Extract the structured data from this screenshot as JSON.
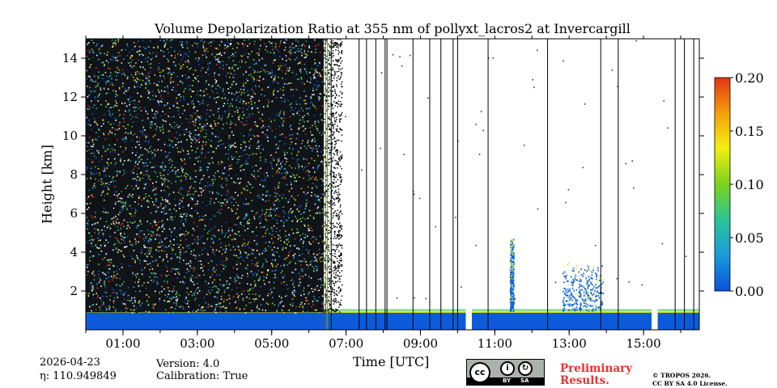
{
  "chart_data": {
    "type": "heatmap",
    "title": "Volume Depolarization Ratio at 355 nm of pollyxt_lacros2 at Invercargill",
    "xlabel": "Time [UTC]",
    "ylabel": "Height [km]",
    "x_range_hours": [
      0.0,
      16.5
    ],
    "y_range_km": [
      0.0,
      15.0
    ],
    "x_ticks": [
      {
        "value": 1,
        "label": "01:00"
      },
      {
        "value": 3,
        "label": "03:00"
      },
      {
        "value": 5,
        "label": "05:00"
      },
      {
        "value": 7,
        "label": "07:00"
      },
      {
        "value": 9,
        "label": "09:00"
      },
      {
        "value": 11,
        "label": "11:00"
      },
      {
        "value": 13,
        "label": "13:00"
      },
      {
        "value": 15,
        "label": "15:00"
      }
    ],
    "y_ticks": [
      {
        "value": 2,
        "label": "2"
      },
      {
        "value": 4,
        "label": "4"
      },
      {
        "value": 6,
        "label": "6"
      },
      {
        "value": 8,
        "label": "8"
      },
      {
        "value": 10,
        "label": "10"
      },
      {
        "value": 12,
        "label": "12"
      },
      {
        "value": 14,
        "label": "14"
      }
    ],
    "colorbar": {
      "min": 0.0,
      "max": 0.2,
      "ticks": [
        {
          "value": 0.0,
          "label": "0.00"
        },
        {
          "value": 0.05,
          "label": "0.05"
        },
        {
          "value": 0.1,
          "label": "0.10"
        },
        {
          "value": 0.15,
          "label": "0.15"
        },
        {
          "value": 0.2,
          "label": "0.20"
        }
      ],
      "colors": [
        "#0b50dc",
        "#1a9cd8",
        "#29c39a",
        "#7ad31e",
        "#f3ef10",
        "#f5a10c",
        "#e43312"
      ]
    },
    "boundary_layer_top_km": 0.9,
    "missing_data_gaps_hours": [
      [
        10.22,
        10.38
      ],
      [
        15.22,
        15.38
      ]
    ],
    "vertical_lines_hours": [
      6.6,
      7.35,
      7.55,
      7.8,
      8.05,
      8.1,
      8.8,
      9.25,
      9.55,
      9.88,
      10.0,
      10.82,
      12.42,
      13.85,
      14.32,
      15.85,
      16.1,
      16.35
    ],
    "features": [
      {
        "name": "noisy night-time signal",
        "x_from": 0.0,
        "x_to": 6.4,
        "y_from": 0.9,
        "y_to": 15.0
      },
      {
        "name": "aerosol layer",
        "x_from": 11.4,
        "x_to": 11.5,
        "y_from": 1.0,
        "y_to": 4.8
      },
      {
        "name": "aerosol layer",
        "x_from": 12.8,
        "x_to": 13.9,
        "y_from": 1.0,
        "y_to": 3.5
      }
    ]
  },
  "footer": {
    "date": "2026-04-23",
    "eta": "η: 110.949849",
    "version": "Version: 4.0",
    "calibration": "Calibration: True",
    "preliminary_line1": "Preliminary",
    "preliminary_line2": "Results.",
    "copyright_line1": "© TROPOS 2026.",
    "copyright_line2": "CC BY SA 4.0 License.",
    "license_badge": {
      "cc": "cc",
      "by": "BY",
      "sa": "SA"
    }
  }
}
